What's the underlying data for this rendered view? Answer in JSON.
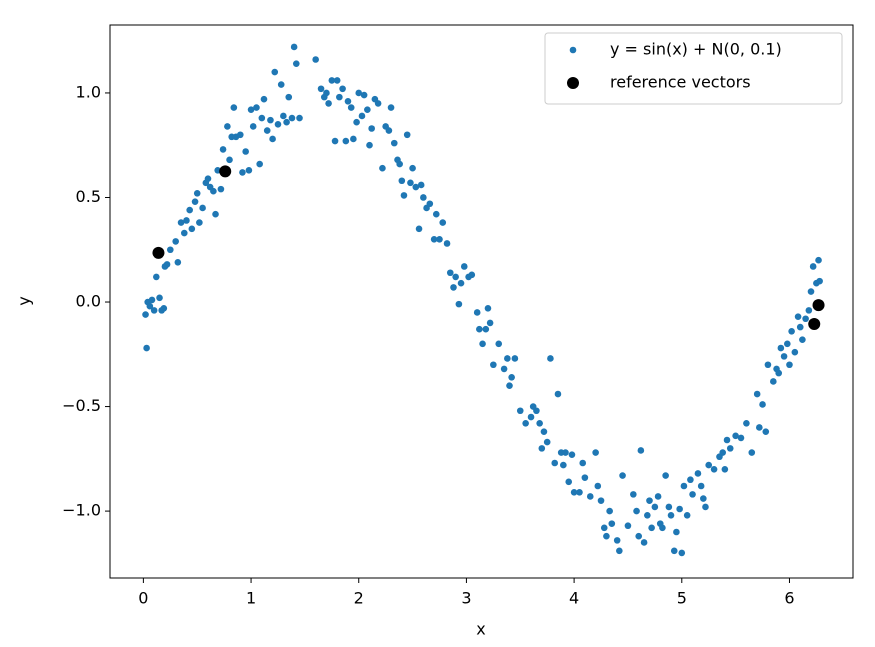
{
  "chart_data": {
    "type": "scatter",
    "xlabel": "x",
    "ylabel": "y",
    "xlim": [
      -0.31,
      6.59
    ],
    "ylim": [
      -1.32,
      1.325
    ],
    "xticks": [
      0,
      1,
      2,
      3,
      4,
      5,
      6
    ],
    "yticks": [
      {
        "value": -1,
        "label": "−1.0"
      },
      {
        "value": -0.5,
        "label": "−0.5"
      },
      {
        "value": 0,
        "label": "0.0"
      },
      0.5,
      {
        "value": 1,
        "label": "1.0"
      }
    ],
    "legend": "upper right",
    "series": [
      {
        "name": "y = sin(x) + N(0, 0.1)",
        "color": "#1f77b4",
        "size": 3.3,
        "x": [
          0.02,
          0.03,
          0.04,
          0.06,
          0.08,
          0.1,
          0.12,
          0.15,
          0.17,
          0.19,
          0.2,
          0.22,
          0.25,
          0.3,
          0.32,
          0.35,
          0.38,
          0.4,
          0.43,
          0.45,
          0.48,
          0.5,
          0.52,
          0.55,
          0.58,
          0.6,
          0.62,
          0.65,
          0.67,
          0.69,
          0.72,
          0.74,
          0.78,
          0.8,
          0.82,
          0.84,
          0.86,
          0.9,
          0.92,
          0.95,
          0.98,
          1.0,
          1.02,
          1.05,
          1.08,
          1.1,
          1.12,
          1.15,
          1.18,
          1.2,
          1.22,
          1.25,
          1.28,
          1.3,
          1.33,
          1.35,
          1.38,
          1.4,
          1.42,
          1.45,
          1.6,
          1.65,
          1.68,
          1.7,
          1.72,
          1.75,
          1.78,
          1.8,
          1.82,
          1.85,
          1.88,
          1.9,
          1.93,
          1.95,
          1.98,
          2.0,
          2.03,
          2.05,
          2.08,
          2.1,
          2.12,
          2.15,
          2.18,
          2.22,
          2.25,
          2.28,
          2.3,
          2.33,
          2.36,
          2.38,
          2.4,
          2.42,
          2.45,
          2.48,
          2.5,
          2.53,
          2.56,
          2.58,
          2.6,
          2.63,
          2.66,
          2.7,
          2.72,
          2.75,
          2.78,
          2.82,
          2.85,
          2.88,
          2.9,
          2.93,
          2.95,
          2.98,
          3.02,
          3.05,
          3.1,
          3.12,
          3.15,
          3.18,
          3.2,
          3.22,
          3.25,
          3.3,
          3.35,
          3.38,
          3.4,
          3.42,
          3.45,
          3.5,
          3.55,
          3.6,
          3.62,
          3.65,
          3.68,
          3.7,
          3.72,
          3.75,
          3.78,
          3.82,
          3.85,
          3.88,
          3.9,
          3.92,
          3.95,
          3.98,
          4.0,
          4.05,
          4.08,
          4.1,
          4.15,
          4.2,
          4.22,
          4.25,
          4.28,
          4.3,
          4.33,
          4.35,
          4.4,
          4.42,
          4.45,
          4.5,
          4.55,
          4.58,
          4.6,
          4.62,
          4.65,
          4.68,
          4.7,
          4.72,
          4.75,
          4.78,
          4.8,
          4.82,
          4.85,
          4.88,
          4.9,
          4.93,
          4.95,
          4.98,
          5.0,
          5.02,
          5.05,
          5.08,
          5.1,
          5.15,
          5.18,
          5.2,
          5.22,
          5.25,
          5.3,
          5.35,
          5.38,
          5.4,
          5.42,
          5.45,
          5.5,
          5.55,
          5.6,
          5.65,
          5.7,
          5.72,
          5.75,
          5.78,
          5.8,
          5.85,
          5.88,
          5.9,
          5.92,
          5.95,
          5.98,
          6.0,
          6.02,
          6.05,
          6.08,
          6.1,
          6.12,
          6.15,
          6.18,
          6.2,
          6.22,
          6.25,
          6.27,
          6.28
        ],
        "values": [
          -0.06,
          -0.22,
          0.0,
          -0.02,
          0.01,
          -0.04,
          0.12,
          0.02,
          -0.04,
          -0.03,
          0.17,
          0.18,
          0.25,
          0.29,
          0.19,
          0.38,
          0.33,
          0.39,
          0.44,
          0.35,
          0.48,
          0.52,
          0.38,
          0.45,
          0.57,
          0.59,
          0.55,
          0.53,
          0.42,
          0.63,
          0.54,
          0.73,
          0.84,
          0.68,
          0.79,
          0.93,
          0.79,
          0.8,
          0.62,
          0.72,
          0.63,
          0.92,
          0.84,
          0.93,
          0.66,
          0.88,
          0.97,
          0.82,
          0.87,
          0.78,
          1.1,
          0.85,
          1.04,
          0.89,
          0.86,
          0.98,
          0.88,
          1.22,
          1.14,
          0.88,
          1.16,
          1.02,
          0.98,
          1.0,
          0.95,
          1.06,
          0.77,
          1.06,
          0.98,
          1.02,
          0.77,
          0.96,
          0.93,
          0.78,
          0.86,
          1.0,
          0.89,
          0.99,
          0.92,
          0.75,
          0.83,
          0.97,
          0.95,
          0.64,
          0.84,
          0.82,
          0.93,
          0.76,
          0.68,
          0.66,
          0.58,
          0.51,
          0.8,
          0.57,
          0.64,
          0.55,
          0.35,
          0.56,
          0.5,
          0.45,
          0.47,
          0.3,
          0.42,
          0.3,
          0.38,
          0.28,
          0.14,
          0.07,
          0.12,
          -0.01,
          0.09,
          0.17,
          0.12,
          0.13,
          -0.05,
          -0.13,
          -0.2,
          -0.13,
          -0.03,
          -0.1,
          -0.3,
          -0.2,
          -0.32,
          -0.27,
          -0.4,
          -0.36,
          -0.27,
          -0.52,
          -0.58,
          -0.55,
          -0.5,
          -0.52,
          -0.58,
          -0.7,
          -0.62,
          -0.67,
          -0.27,
          -0.77,
          -0.44,
          -0.72,
          -0.78,
          -0.72,
          -0.86,
          -0.73,
          -0.91,
          -0.91,
          -0.77,
          -0.84,
          -0.93,
          -0.72,
          -0.88,
          -0.95,
          -1.08,
          -1.12,
          -1.0,
          -1.06,
          -1.14,
          -1.19,
          -0.83,
          -1.07,
          -0.92,
          -1.0,
          -1.12,
          -0.71,
          -1.15,
          -1.02,
          -0.95,
          -1.08,
          -0.98,
          -0.93,
          -1.06,
          -1.08,
          -0.83,
          -0.98,
          -1.02,
          -1.19,
          -1.1,
          -0.99,
          -1.2,
          -0.88,
          -1.02,
          -0.85,
          -0.92,
          -0.82,
          -0.88,
          -0.94,
          -0.98,
          -0.78,
          -0.8,
          -0.74,
          -0.72,
          -0.8,
          -0.66,
          -0.7,
          -0.64,
          -0.65,
          -0.58,
          -0.72,
          -0.44,
          -0.6,
          -0.49,
          -0.62,
          -0.3,
          -0.38,
          -0.32,
          -0.34,
          -0.22,
          -0.26,
          -0.2,
          -0.3,
          -0.14,
          -0.24,
          -0.07,
          -0.12,
          -0.18,
          -0.08,
          -0.04,
          0.05,
          0.17,
          0.09,
          0.2,
          0.1
        ]
      },
      {
        "name": "reference vectors",
        "color": "#000000",
        "size": 6,
        "x": [
          0.14,
          0.76,
          6.27,
          6.23
        ],
        "values": [
          0.235,
          0.625,
          -0.015,
          -0.105
        ]
      }
    ]
  }
}
